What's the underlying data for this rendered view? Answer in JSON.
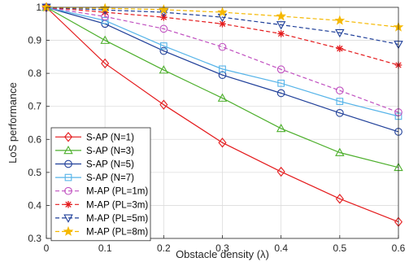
{
  "chart_data": {
    "type": "line",
    "xlabel": "Obstacle density (λ)",
    "ylabel": "LoS performance",
    "xlim": [
      0,
      0.6
    ],
    "ylim": [
      0.3,
      1
    ],
    "xticks": [
      0,
      0.1,
      0.2,
      0.3,
      0.4,
      0.5,
      0.6
    ],
    "xtick_labels": [
      "0",
      "0.1",
      "0.2",
      "0.3",
      "0.4",
      "0.5",
      "0.6"
    ],
    "yticks": [
      0.3,
      0.4,
      0.5,
      0.6,
      0.7,
      0.8,
      0.9,
      1
    ],
    "ytick_labels": [
      "0.3",
      "0.4",
      "0.5",
      "0.6",
      "0.7",
      "0.8",
      "0.9",
      "1"
    ],
    "grid": true,
    "legend_position": "bottom-left",
    "x": [
      0,
      0.1,
      0.2,
      0.3,
      0.4,
      0.5,
      0.6
    ],
    "series": [
      {
        "name": "S-AP (N=1)",
        "color": "#e41a1c",
        "marker": "diamond",
        "dash": false,
        "values": [
          1.0,
          0.83,
          0.705,
          0.59,
          0.502,
          0.42,
          0.35
        ]
      },
      {
        "name": "S-AP (N=3)",
        "color": "#4daf2c",
        "marker": "triangle-up",
        "dash": false,
        "values": [
          1.0,
          0.9,
          0.81,
          0.725,
          0.633,
          0.56,
          0.515
        ]
      },
      {
        "name": "S-AP (N=5)",
        "color": "#1f3f99",
        "marker": "circle",
        "dash": false,
        "values": [
          1.0,
          0.95,
          0.868,
          0.795,
          0.74,
          0.68,
          0.623
        ]
      },
      {
        "name": "S-AP (N=7)",
        "color": "#56b4e9",
        "marker": "square",
        "dash": false,
        "values": [
          1.0,
          0.96,
          0.883,
          0.813,
          0.77,
          0.715,
          0.67
        ]
      },
      {
        "name": "M-AP (PL=1m)",
        "color": "#c050c0",
        "marker": "circle",
        "dash": true,
        "values": [
          1.0,
          0.972,
          0.935,
          0.88,
          0.812,
          0.748,
          0.682
        ]
      },
      {
        "name": "M-AP (PL=3m)",
        "color": "#e41a1c",
        "marker": "asterisk",
        "dash": true,
        "values": [
          1.0,
          0.985,
          0.97,
          0.95,
          0.92,
          0.875,
          0.825
        ]
      },
      {
        "name": "M-AP (PL=5m)",
        "color": "#1f3f99",
        "marker": "triangle-down",
        "dash": true,
        "values": [
          1.0,
          0.992,
          0.985,
          0.97,
          0.947,
          0.923,
          0.888
        ]
      },
      {
        "name": "M-AP (PL=8m)",
        "color": "#f5b800",
        "marker": "star",
        "dash": true,
        "values": [
          1.0,
          0.997,
          0.993,
          0.985,
          0.973,
          0.96,
          0.94
        ]
      }
    ]
  }
}
